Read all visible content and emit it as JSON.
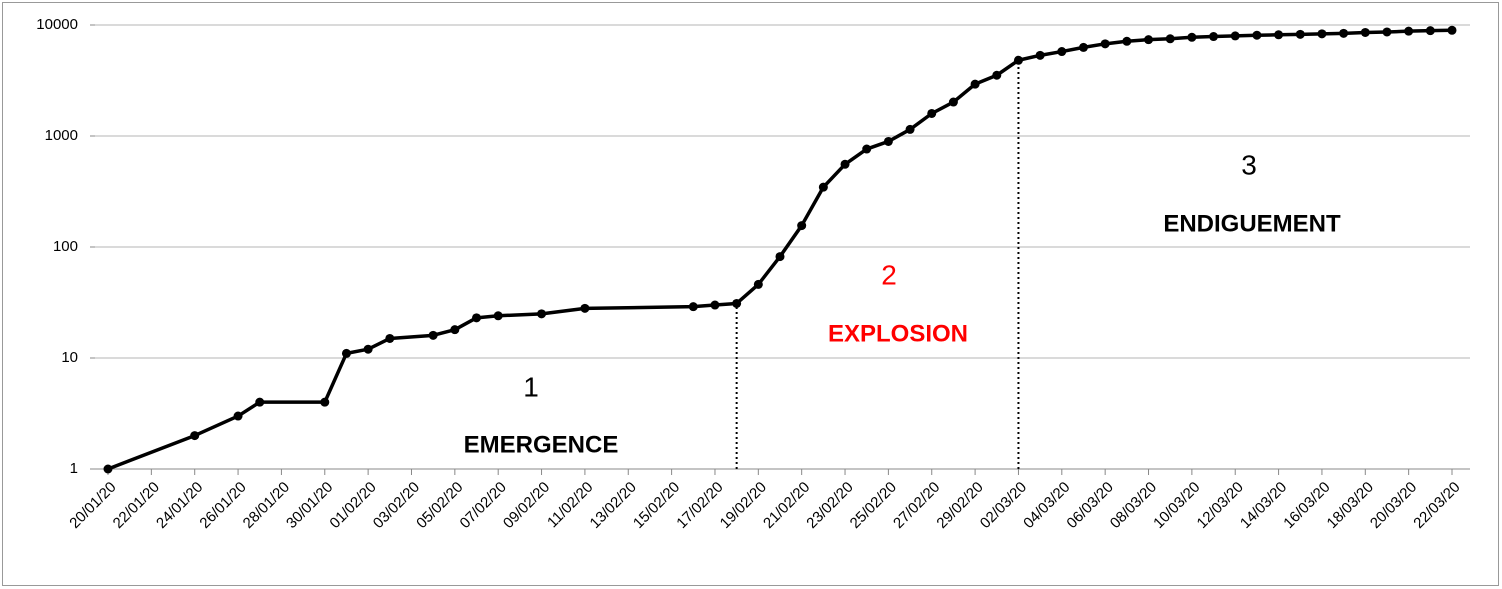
{
  "chart_data": {
    "type": "line",
    "log_scale_y": true,
    "grid": true,
    "color": "#000000",
    "x": [
      "20/01/20",
      "24/01/20",
      "26/01/20",
      "27/01/20",
      "30/01/20",
      "31/01/20",
      "01/02/20",
      "02/02/20",
      "04/02/20",
      "05/02/20",
      "06/02/20",
      "07/02/20",
      "09/02/20",
      "11/02/20",
      "16/02/20",
      "17/02/20",
      "18/02/20",
      "19/02/20",
      "20/02/20",
      "21/02/20",
      "22/02/20",
      "23/02/20",
      "24/02/20",
      "25/02/20",
      "26/02/20",
      "27/02/20",
      "28/02/20",
      "29/02/20",
      "01/03/20",
      "02/03/20",
      "03/03/20",
      "04/03/20",
      "05/03/20",
      "06/03/20",
      "07/03/20",
      "08/03/20",
      "09/03/20",
      "10/03/20",
      "11/03/20",
      "12/03/20",
      "13/03/20",
      "14/03/20",
      "15/03/20",
      "16/03/20",
      "17/03/20",
      "18/03/20",
      "19/03/20",
      "20/03/20",
      "21/03/20",
      "22/03/20"
    ],
    "values": [
      1,
      2,
      3,
      4,
      4,
      11,
      12,
      15,
      16,
      18,
      23,
      24,
      25,
      28,
      29,
      30,
      31,
      46,
      82,
      156,
      346,
      556,
      763,
      893,
      1146,
      1595,
      2022,
      2931,
      3526,
      4812,
      5328,
      5766,
      6284,
      6767,
      7134,
      7382,
      7513,
      7755,
      7869,
      7979,
      8086,
      8162,
      8236,
      8320,
      8413,
      8565,
      8652,
      8799,
      8897,
      8961
    ],
    "xlim": [
      "20/01/20",
      "22/03/20"
    ],
    "xticks": [
      "20/01/20",
      "22/01/20",
      "24/01/20",
      "26/01/20",
      "28/01/20",
      "30/01/20",
      "01/02/20",
      "03/02/20",
      "05/02/20",
      "07/02/20",
      "09/02/20",
      "11/02/20",
      "13/02/20",
      "15/02/20",
      "17/02/20",
      "19/02/20",
      "21/02/20",
      "23/02/20",
      "25/02/20",
      "27/02/20",
      "29/02/20",
      "02/03/20",
      "04/03/20",
      "06/03/20",
      "08/03/20",
      "10/03/20",
      "12/03/20",
      "14/03/20",
      "16/03/20",
      "18/03/20",
      "20/03/20",
      "22/03/20"
    ],
    "ylim": [
      1,
      10000
    ],
    "yticks": [
      1,
      10,
      100,
      1000,
      10000
    ],
    "reference_lines": [
      "18/02/20",
      "02/03/20"
    ],
    "annotations": [
      {
        "text": "1",
        "color": "#000000"
      },
      {
        "text": "EMERGENCE",
        "color": "#000000"
      },
      {
        "text": "2",
        "color": "#ff0000"
      },
      {
        "text": "EXPLOSION",
        "color": "#ff0000"
      },
      {
        "text": "3",
        "color": "#000000"
      },
      {
        "text": "ENDIGUEMENT",
        "color": "#000000"
      }
    ]
  }
}
